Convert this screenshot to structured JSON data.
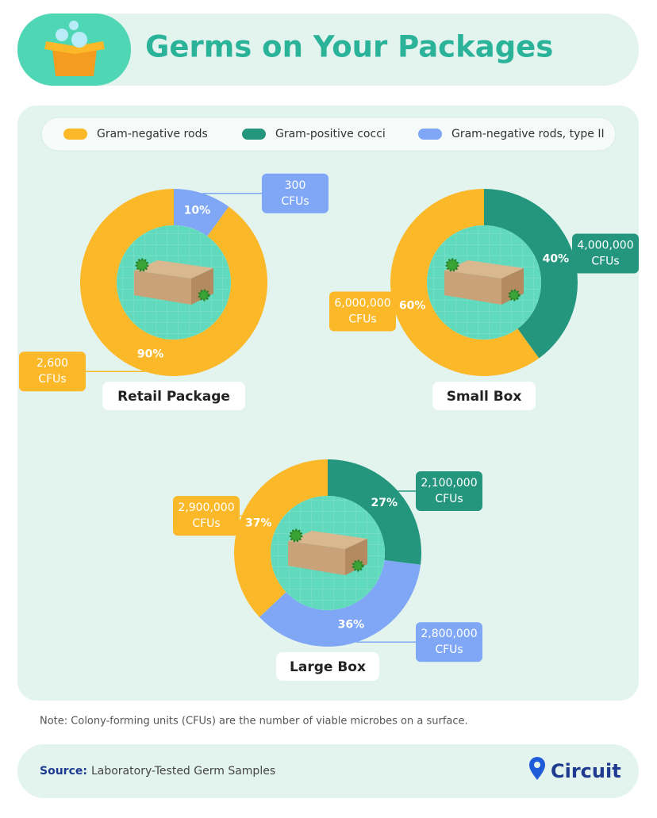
{
  "header": {
    "title": "Germs on Your Packages"
  },
  "legend": {
    "names": [
      "Gram-negative rods",
      "Gram-positive cocci",
      "Gram-negative rods, type II"
    ],
    "colors": [
      "#fbb829",
      "#24967e",
      "#7fa7f5"
    ]
  },
  "cfu_unit": "CFUs",
  "chart_data": [
    {
      "type": "pie",
      "title": "Retail Package",
      "values": [
        90,
        null,
        10
      ],
      "value_labels": [
        "90%",
        null,
        "10%"
      ],
      "cfus": [
        2600,
        null,
        300
      ],
      "cfu_labels": [
        "2,600",
        null,
        "300"
      ]
    },
    {
      "type": "pie",
      "title": "Small Box",
      "values": [
        60,
        40,
        null
      ],
      "value_labels": [
        "60%",
        "40%",
        null
      ],
      "cfus": [
        6000000,
        4000000,
        null
      ],
      "cfu_labels": [
        "6,000,000",
        "4,000,000",
        null
      ]
    },
    {
      "type": "pie",
      "title": "Large Box",
      "values": [
        37,
        27,
        36
      ],
      "value_labels": [
        "37%",
        "27%",
        "36%"
      ],
      "cfus": [
        2900000,
        2100000,
        2800000
      ],
      "cfu_labels": [
        "2,900,000",
        "2,100,000",
        "2,800,000"
      ]
    }
  ],
  "note": "Note: Colony-forming units (CFUs) are the number of viable microbes on a surface.",
  "source": {
    "label": "Source:",
    "text": "Laboratory-Tested Germ Samples"
  },
  "brand": "Circuit"
}
